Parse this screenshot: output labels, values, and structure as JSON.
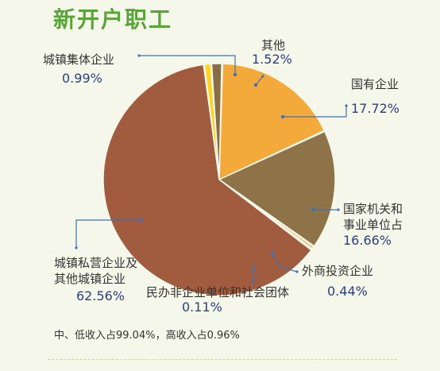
{
  "title": "新开户职工",
  "footnote": "中、低收入占99.04%，高收入占0.96%",
  "chart_data": {
    "type": "pie",
    "title": "新开户职工",
    "slices": [
      {
        "label": [
          "其他"
        ],
        "value": 1.52,
        "display": "1.52%",
        "color": "#8a6d44"
      },
      {
        "label": [
          "国有企业"
        ],
        "value": 17.72,
        "display": "17.72%",
        "color": "#f3aa3a"
      },
      {
        "label": [
          "国家机关和",
          "事业单位占"
        ],
        "value": 16.66,
        "display": "16.66%",
        "color": "#8e7348"
      },
      {
        "label": [
          "外商投资企业"
        ],
        "value": 0.44,
        "display": "0.44%",
        "color": "#f3aa3a"
      },
      {
        "label": [
          "民办非企业单位和社会团体"
        ],
        "value": 0.11,
        "display": "0.11%",
        "color": "#7b3f8e"
      },
      {
        "label": [
          "城镇私营企业及",
          "其他城镇企业"
        ],
        "value": 62.56,
        "display": "62.56%",
        "color": "#a15b3e"
      },
      {
        "label": [
          "城镇集体企业"
        ],
        "value": 0.99,
        "display": "0.99%",
        "color": "#ffd21e"
      }
    ]
  }
}
